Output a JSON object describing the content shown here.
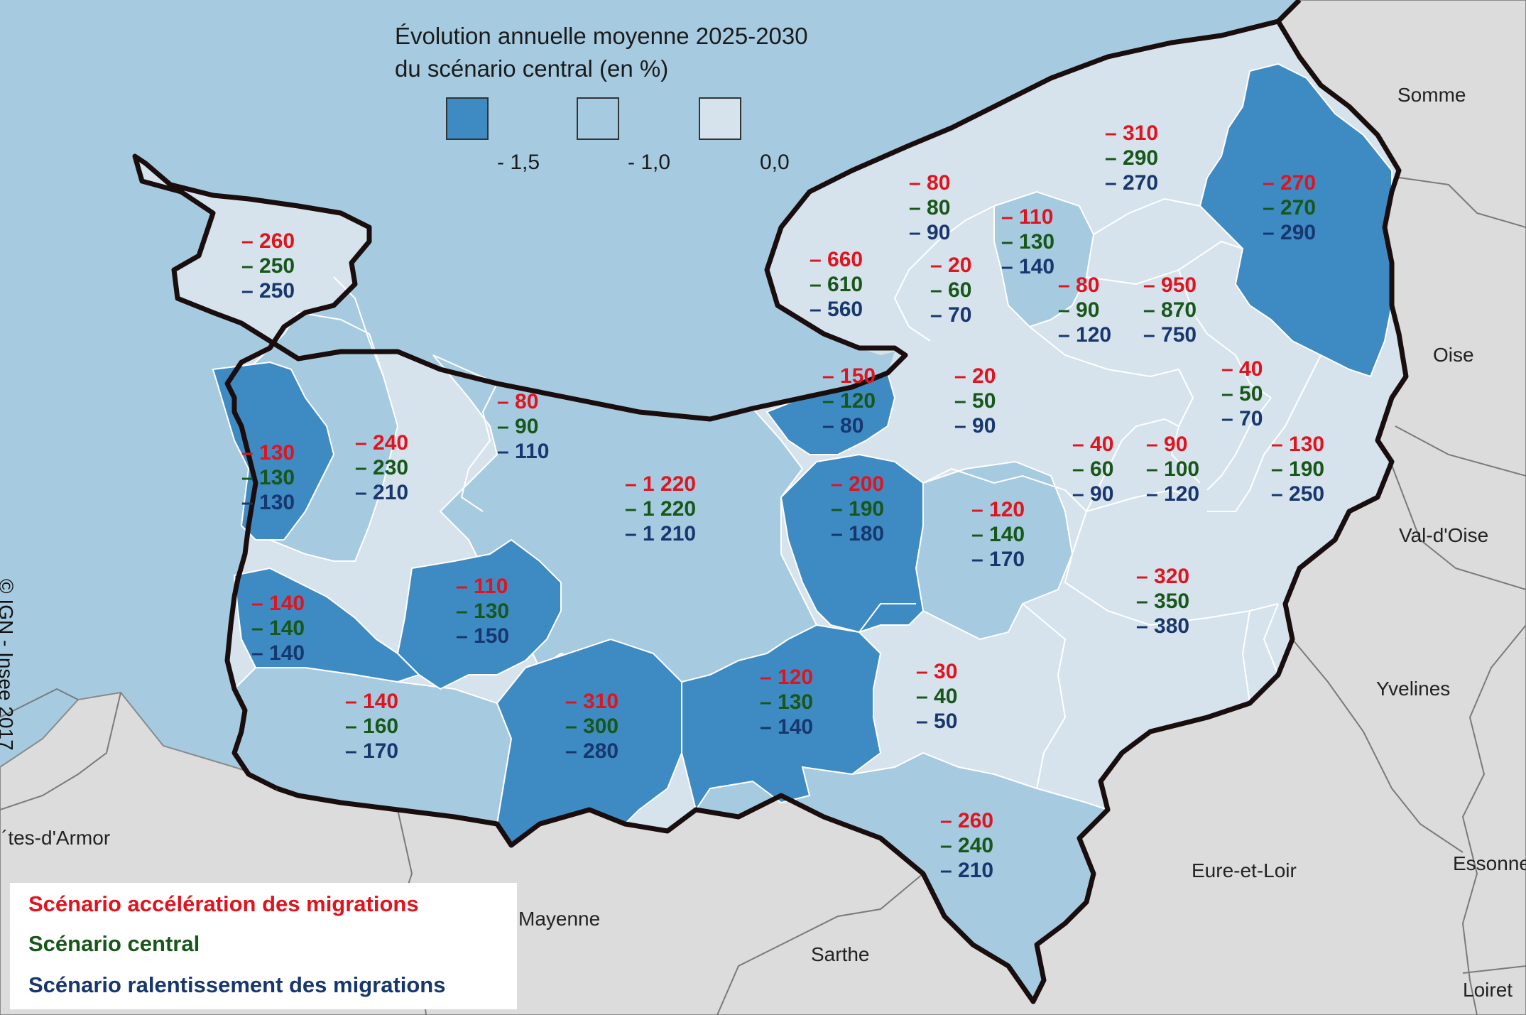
{
  "title": {
    "line1": "Évolution annuelle moyenne 2025-2030",
    "line2": "du scénario central (en %)"
  },
  "legend": {
    "classes": [
      {
        "color": "#3e8bc4"
      },
      {
        "color": "#a6cbe1"
      },
      {
        "color": "#d6e3ec"
      }
    ],
    "labels": [
      "- 1,5",
      "- 1,0",
      "0,0"
    ]
  },
  "copyright": "© IGN - Insee 2017",
  "departments": {
    "somme": "Somme",
    "oise": "Oise",
    "val_doise": "Val-d'Oise",
    "yvelines": "Yvelines",
    "essonne": "Essonne",
    "eure_et_loir": "Eure-et-Loir",
    "loiret": "Loiret",
    "sarthe": "Sarthe",
    "mayenne": "Mayenne",
    "cotes_darmor": "´tes-d'Armor"
  },
  "scenarios": {
    "acceleration": "Scénario accélération des migrations",
    "central": "Scénario central",
    "ralentissement": "Scénario ralentissement des migrations"
  },
  "zones": [
    {
      "id": "cherbourg",
      "r": "– 260",
      "g": "– 250",
      "b": "– 250"
    },
    {
      "id": "coutances",
      "r": "– 130",
      "g": "– 130",
      "b": "– 130"
    },
    {
      "id": "saint-lo",
      "r": "– 240",
      "g": "– 230",
      "b": "– 210"
    },
    {
      "id": "bayeux",
      "r": "– 80",
      "g": "– 90",
      "b": "– 110"
    },
    {
      "id": "caen",
      "r": "– 1 220",
      "g": "– 1 220",
      "b": "– 1 210"
    },
    {
      "id": "granville",
      "r": "– 140",
      "g": "– 140",
      "b": "– 140"
    },
    {
      "id": "vire",
      "r": "– 110",
      "g": "– 130",
      "b": "– 150"
    },
    {
      "id": "avranches",
      "r": "– 140",
      "g": "– 160",
      "b": "– 170"
    },
    {
      "id": "flers",
      "r": "– 310",
      "g": "– 300",
      "b": "– 280"
    },
    {
      "id": "argentan",
      "r": "– 120",
      "g": "– 130",
      "b": "– 140"
    },
    {
      "id": "honfleur",
      "r": "– 150",
      "g": "– 120",
      "b": "– 80"
    },
    {
      "id": "lisieux",
      "r": "– 200",
      "g": "– 190",
      "b": "– 180"
    },
    {
      "id": "bernay",
      "r": "– 120",
      "g": "– 140",
      "b": "– 170"
    },
    {
      "id": "laigle",
      "r": "– 30",
      "g": "– 40",
      "b": "– 50"
    },
    {
      "id": "alencon",
      "r": "– 260",
      "g": "– 240",
      "b": "– 210"
    },
    {
      "id": "le-havre",
      "r": "– 660",
      "g": "– 610",
      "b": "– 560"
    },
    {
      "id": "fecamp",
      "r": "– 80",
      "g": "– 80",
      "b": "– 90"
    },
    {
      "id": "bolbec",
      "r": "– 20",
      "g": "– 60",
      "b": "– 70"
    },
    {
      "id": "yvetot",
      "r": "– 110",
      "g": "– 130",
      "b": "– 140"
    },
    {
      "id": "dieppe",
      "r": "– 310",
      "g": "– 290",
      "b": "– 270"
    },
    {
      "id": "eu",
      "r": "– 270",
      "g": "– 270",
      "b": "– 290"
    },
    {
      "id": "barentin",
      "r": "– 80",
      "g": "– 90",
      "b": "– 120"
    },
    {
      "id": "rouen",
      "r": "– 950",
      "g": "– 870",
      "b": "– 750"
    },
    {
      "id": "pont-audemer",
      "r": "– 20",
      "g": "– 50",
      "b": "– 90"
    },
    {
      "id": "gournay",
      "r": "– 40",
      "g": "– 50",
      "b": "– 70"
    },
    {
      "id": "elbeuf",
      "r": "– 40",
      "g": "– 60",
      "b": "– 90"
    },
    {
      "id": "louviers",
      "r": "– 90",
      "g": "– 100",
      "b": "– 120"
    },
    {
      "id": "vernon",
      "r": "– 130",
      "g": "– 190",
      "b": "– 250"
    },
    {
      "id": "evreux",
      "r": "– 320",
      "g": "– 350",
      "b": "– 380"
    }
  ]
}
